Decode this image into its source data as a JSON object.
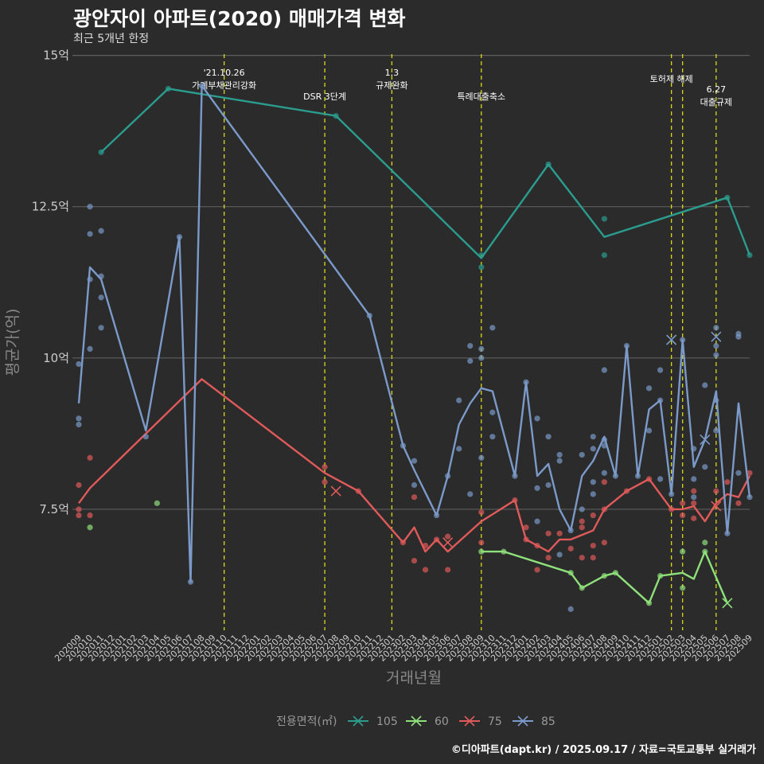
{
  "title": "광안자이 아파트(2020) 매매가격 변화",
  "subtitle": "최근 5개년 한정",
  "caption": "©디아파트(dapt.kr) / 2025.09.17 / 자료=국토교통부 실거래가",
  "chart_data": {
    "type": "line",
    "xlabel": "거래년월",
    "ylabel": "평균가(억)",
    "ylim": [
      5.5,
      15.1
    ],
    "yticks": [
      7.5,
      10,
      12.5,
      15
    ],
    "ytick_labels": [
      "7.5억",
      "10억",
      "12.5억",
      "15억"
    ],
    "grid": true,
    "months": [
      "202009",
      "202010",
      "202011",
      "202012",
      "202101",
      "202102",
      "202103",
      "202104",
      "202105",
      "202106",
      "202107",
      "202108",
      "202109",
      "202110",
      "202111",
      "202112",
      "202201",
      "202202",
      "202203",
      "202204",
      "202205",
      "202206",
      "202207",
      "202208",
      "202209",
      "202210",
      "202211",
      "202212",
      "202301",
      "202302",
      "202303",
      "202304",
      "202305",
      "202306",
      "202307",
      "202308",
      "202309",
      "202310",
      "202311",
      "202312",
      "202401",
      "202402",
      "202403",
      "202404",
      "202405",
      "202406",
      "202407",
      "202408",
      "202409",
      "202410",
      "202411",
      "202412",
      "202501",
      "202502",
      "202503",
      "202504",
      "202505",
      "202506",
      "202507",
      "202508",
      "202509"
    ],
    "legend": {
      "title": "전용면적(㎡)",
      "position": "bottom",
      "entries": [
        "105",
        "60",
        "75",
        "85"
      ]
    },
    "annotations": [
      {
        "x": "202110",
        "lines": [
          "'21.10.26",
          "가계부채관리강화"
        ]
      },
      {
        "x": "202207",
        "lines": [
          "DSR 3단계"
        ]
      },
      {
        "x": "202301",
        "lines": [
          "1.3",
          "규제완화"
        ]
      },
      {
        "x": "202309",
        "lines": [
          "특례대출축소"
        ]
      },
      {
        "x": "202502",
        "lines": [
          "토허제 해제"
        ]
      },
      {
        "x": "202503",
        "lines": []
      },
      {
        "x": "202506",
        "lines": [
          "6.27",
          "대출규제"
        ]
      }
    ],
    "series": [
      {
        "name": "105",
        "color": "#2a9d8f",
        "line": [
          [
            "202011",
            13.4
          ],
          [
            "202105",
            14.45
          ],
          [
            "202208",
            14.0
          ],
          [
            "202309",
            11.65
          ],
          [
            "202403",
            13.2
          ],
          [
            "202408",
            12.0
          ],
          [
            "202507",
            12.65
          ],
          [
            "202509",
            11.7
          ]
        ],
        "points": [
          [
            "202011",
            13.4
          ],
          [
            "202105",
            14.45
          ],
          [
            "202208",
            14.0
          ],
          [
            "202309",
            11.7
          ],
          [
            "202309",
            11.5
          ],
          [
            "202403",
            13.2
          ],
          [
            "202408",
            12.3
          ],
          [
            "202408",
            11.7
          ],
          [
            "202507",
            12.65
          ],
          [
            "202509",
            11.7
          ]
        ],
        "crosses": []
      },
      {
        "name": "60",
        "color": "#8ee07a",
        "line": [
          [
            "202309",
            6.8
          ],
          [
            "202311",
            6.8
          ],
          [
            "202405",
            6.45
          ],
          [
            "202406",
            6.2
          ],
          [
            "202408",
            6.4
          ],
          [
            "202409",
            6.45
          ],
          [
            "202412",
            5.95
          ],
          [
            "202501",
            6.4
          ],
          [
            "202503",
            6.45
          ],
          [
            "202504",
            6.35
          ],
          [
            "202505",
            6.8
          ],
          [
            "202507",
            5.95
          ]
        ],
        "points": [
          [
            "202010",
            7.2
          ],
          [
            "202104",
            7.6
          ],
          [
            "202309",
            6.8
          ],
          [
            "202311",
            6.8
          ],
          [
            "202405",
            6.45
          ],
          [
            "202406",
            6.2
          ],
          [
            "202408",
            6.4
          ],
          [
            "202409",
            6.45
          ],
          [
            "202412",
            5.95
          ],
          [
            "202501",
            6.4
          ],
          [
            "202503",
            6.8
          ],
          [
            "202503",
            6.2
          ],
          [
            "202505",
            6.95
          ],
          [
            "202505",
            6.8
          ]
        ],
        "crosses": [
          [
            "202507",
            5.95
          ]
        ]
      },
      {
        "name": "75",
        "color": "#e05a5a",
        "line": [
          [
            "202009",
            7.6
          ],
          [
            "202010",
            7.85
          ],
          [
            "202108",
            9.65
          ],
          [
            "202207",
            8.1
          ],
          [
            "202210",
            7.8
          ],
          [
            "202302",
            6.95
          ],
          [
            "202303",
            7.2
          ],
          [
            "202304",
            6.8
          ],
          [
            "202305",
            7.0
          ],
          [
            "202306",
            6.8
          ],
          [
            "202309",
            7.3
          ],
          [
            "202312",
            7.65
          ],
          [
            "202401",
            7.0
          ],
          [
            "202402",
            6.9
          ],
          [
            "202403",
            6.8
          ],
          [
            "202404",
            7.0
          ],
          [
            "202405",
            7.0
          ],
          [
            "202407",
            7.15
          ],
          [
            "202408",
            7.5
          ],
          [
            "202410",
            7.8
          ],
          [
            "202412",
            8.0
          ],
          [
            "202502",
            7.5
          ],
          [
            "202503",
            7.5
          ],
          [
            "202504",
            7.55
          ],
          [
            "202505",
            7.3
          ],
          [
            "202506",
            7.6
          ],
          [
            "202507",
            7.75
          ],
          [
            "202508",
            7.7
          ],
          [
            "202509",
            8.05
          ]
        ],
        "points": [
          [
            "202009",
            7.9
          ],
          [
            "202009",
            7.5
          ],
          [
            "202009",
            7.4
          ],
          [
            "202010",
            8.35
          ],
          [
            "202010",
            7.4
          ],
          [
            "202207",
            8.2
          ],
          [
            "202207",
            7.95
          ],
          [
            "202210",
            7.8
          ],
          [
            "202302",
            6.95
          ],
          [
            "202303",
            6.65
          ],
          [
            "202303",
            7.7
          ],
          [
            "202304",
            6.9
          ],
          [
            "202304",
            6.5
          ],
          [
            "202305",
            7.0
          ],
          [
            "202306",
            7.05
          ],
          [
            "202306",
            6.5
          ],
          [
            "202309",
            7.45
          ],
          [
            "202309",
            6.95
          ],
          [
            "202312",
            7.65
          ],
          [
            "202401",
            7.2
          ],
          [
            "202401",
            7.0
          ],
          [
            "202402",
            6.9
          ],
          [
            "202402",
            6.5
          ],
          [
            "202403",
            7.1
          ],
          [
            "202403",
            6.7
          ],
          [
            "202404",
            7.1
          ],
          [
            "202405",
            6.85
          ],
          [
            "202406",
            7.3
          ],
          [
            "202406",
            7.2
          ],
          [
            "202406",
            6.7
          ],
          [
            "202407",
            7.4
          ],
          [
            "202407",
            6.9
          ],
          [
            "202407",
            6.7
          ],
          [
            "202408",
            7.95
          ],
          [
            "202408",
            7.5
          ],
          [
            "202408",
            6.95
          ],
          [
            "202410",
            7.8
          ],
          [
            "202412",
            8.0
          ],
          [
            "202502",
            7.5
          ],
          [
            "202503",
            7.6
          ],
          [
            "202503",
            7.4
          ],
          [
            "202504",
            7.8
          ],
          [
            "202504",
            7.6
          ],
          [
            "202504",
            7.35
          ],
          [
            "202506",
            7.8
          ],
          [
            "202507",
            7.95
          ],
          [
            "202508",
            7.6
          ],
          [
            "202509",
            8.1
          ]
        ],
        "crosses": [
          [
            "202208",
            7.8
          ],
          [
            "202306",
            6.95
          ],
          [
            "202506",
            7.55
          ]
        ]
      },
      {
        "name": "85",
        "color": "#7b9ac9",
        "line": [
          [
            "202009",
            9.25
          ],
          [
            "202010",
            11.5
          ],
          [
            "202011",
            11.3
          ],
          [
            "202103",
            8.8
          ],
          [
            "202106",
            12.0
          ],
          [
            "202107",
            6.3
          ],
          [
            "202108",
            14.5
          ],
          [
            "202211",
            10.7
          ],
          [
            "202302",
            8.55
          ],
          [
            "202303",
            8.15
          ],
          [
            "202305",
            7.4
          ],
          [
            "202306",
            8.05
          ],
          [
            "202307",
            8.9
          ],
          [
            "202308",
            9.25
          ],
          [
            "202309",
            9.5
          ],
          [
            "202310",
            9.45
          ],
          [
            "202312",
            8.05
          ],
          [
            "202401",
            9.6
          ],
          [
            "202402",
            8.05
          ],
          [
            "202403",
            8.25
          ],
          [
            "202404",
            7.5
          ],
          [
            "202405",
            7.15
          ],
          [
            "202406",
            8.05
          ],
          [
            "202407",
            8.3
          ],
          [
            "202408",
            8.7
          ],
          [
            "202409",
            8.05
          ],
          [
            "202410",
            10.2
          ],
          [
            "202411",
            8.05
          ],
          [
            "202412",
            9.15
          ],
          [
            "202501",
            9.3
          ],
          [
            "202502",
            7.75
          ],
          [
            "202503",
            10.3
          ],
          [
            "202504",
            8.2
          ],
          [
            "202505",
            8.65
          ],
          [
            "202506",
            9.45
          ],
          [
            "202507",
            7.1
          ],
          [
            "202508",
            9.25
          ],
          [
            "202509",
            7.7
          ]
        ],
        "points": [
          [
            "202009",
            9.9
          ],
          [
            "202009",
            9.0
          ],
          [
            "202009",
            8.9
          ],
          [
            "202010",
            12.5
          ],
          [
            "202010",
            12.05
          ],
          [
            "202010",
            11.3
          ],
          [
            "202010",
            10.15
          ],
          [
            "202011",
            12.1
          ],
          [
            "202011",
            11.35
          ],
          [
            "202011",
            11.0
          ],
          [
            "202011",
            10.5
          ],
          [
            "202103",
            8.7
          ],
          [
            "202106",
            12.0
          ],
          [
            "202107",
            6.3
          ],
          [
            "202108",
            14.5
          ],
          [
            "202211",
            10.7
          ],
          [
            "202302",
            8.55
          ],
          [
            "202303",
            8.3
          ],
          [
            "202303",
            7.9
          ],
          [
            "202305",
            7.4
          ],
          [
            "202306",
            8.05
          ],
          [
            "202307",
            9.3
          ],
          [
            "202307",
            8.5
          ],
          [
            "202308",
            10.2
          ],
          [
            "202308",
            9.95
          ],
          [
            "202308",
            7.75
          ],
          [
            "202309",
            10.15
          ],
          [
            "202309",
            10.0
          ],
          [
            "202309",
            8.35
          ],
          [
            "202310",
            10.5
          ],
          [
            "202310",
            9.1
          ],
          [
            "202310",
            8.7
          ],
          [
            "202312",
            8.05
          ],
          [
            "202401",
            9.6
          ],
          [
            "202402",
            9.0
          ],
          [
            "202402",
            7.85
          ],
          [
            "202402",
            7.3
          ],
          [
            "202403",
            8.7
          ],
          [
            "202403",
            7.9
          ],
          [
            "202404",
            8.4
          ],
          [
            "202404",
            8.3
          ],
          [
            "202404",
            6.75
          ],
          [
            "202405",
            7.15
          ],
          [
            "202405",
            5.85
          ],
          [
            "202406",
            8.4
          ],
          [
            "202406",
            7.5
          ],
          [
            "202407",
            8.7
          ],
          [
            "202407",
            8.5
          ],
          [
            "202407",
            7.95
          ],
          [
            "202407",
            7.75
          ],
          [
            "202408",
            9.8
          ],
          [
            "202408",
            8.65
          ],
          [
            "202408",
            8.55
          ],
          [
            "202408",
            8.1
          ],
          [
            "202409",
            8.05
          ],
          [
            "202410",
            10.2
          ],
          [
            "202411",
            8.05
          ],
          [
            "202412",
            9.5
          ],
          [
            "202412",
            8.8
          ],
          [
            "202501",
            9.8
          ],
          [
            "202501",
            9.3
          ],
          [
            "202501",
            8.0
          ],
          [
            "202502",
            7.75
          ],
          [
            "202503",
            10.3
          ],
          [
            "202504",
            8.5
          ],
          [
            "202504",
            8.0
          ],
          [
            "202504",
            7.7
          ],
          [
            "202505",
            9.55
          ],
          [
            "202505",
            8.2
          ],
          [
            "202506",
            10.5
          ],
          [
            "202506",
            10.2
          ],
          [
            "202506",
            10.05
          ],
          [
            "202506",
            9.3
          ],
          [
            "202506",
            8.8
          ],
          [
            "202507",
            7.1
          ],
          [
            "202508",
            10.4
          ],
          [
            "202508",
            10.35
          ],
          [
            "202508",
            8.1
          ],
          [
            "202509",
            7.7
          ]
        ],
        "crosses": [
          [
            "202502",
            10.3
          ],
          [
            "202505",
            8.65
          ],
          [
            "202506",
            10.35
          ]
        ]
      }
    ]
  }
}
